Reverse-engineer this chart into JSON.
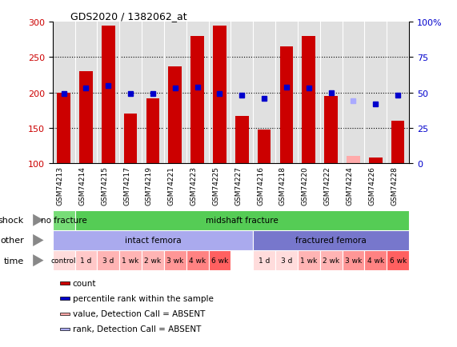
{
  "title": "GDS2020 / 1382062_at",
  "samples": [
    "GSM74213",
    "GSM74214",
    "GSM74215",
    "GSM74217",
    "GSM74219",
    "GSM74221",
    "GSM74223",
    "GSM74225",
    "GSM74227",
    "GSM74216",
    "GSM74218",
    "GSM74220",
    "GSM74222",
    "GSM74224",
    "GSM74226",
    "GSM74228"
  ],
  "counts": [
    200,
    230,
    295,
    170,
    192,
    237,
    280,
    295,
    167,
    147,
    265,
    280,
    195,
    110,
    108,
    160
  ],
  "count_absent": [
    false,
    false,
    false,
    false,
    false,
    false,
    false,
    false,
    false,
    false,
    false,
    false,
    false,
    true,
    false,
    false
  ],
  "percentile_ranks": [
    49,
    53,
    55,
    49,
    49,
    53,
    54,
    49,
    48,
    46,
    54,
    53,
    50,
    44,
    42,
    48
  ],
  "rank_absent": [
    false,
    false,
    false,
    false,
    false,
    false,
    false,
    false,
    false,
    false,
    false,
    false,
    false,
    true,
    false,
    false
  ],
  "ylim_left": [
    100,
    300
  ],
  "ylim_right": [
    0,
    100
  ],
  "yticks_left": [
    100,
    150,
    200,
    250,
    300
  ],
  "yticks_right": [
    0,
    25,
    50,
    75,
    100
  ],
  "bar_color": "#cc0000",
  "bar_absent_color": "#ffaaaa",
  "dot_color": "#0000cc",
  "dot_absent_color": "#aaaaff",
  "shock_labels": [
    {
      "text": "no fracture",
      "start": 0,
      "end": 1,
      "color": "#77dd77"
    },
    {
      "text": "midshaft fracture",
      "start": 1,
      "end": 16,
      "color": "#55cc55"
    }
  ],
  "other_labels": [
    {
      "text": "intact femora",
      "start": 0,
      "end": 9,
      "color": "#aaaaee"
    },
    {
      "text": "fractured femora",
      "start": 9,
      "end": 16,
      "color": "#7777cc"
    }
  ],
  "time_spans": [
    {
      "text": "control",
      "start": 0,
      "end": 1,
      "color": "#ffdcdc"
    },
    {
      "text": "1 d",
      "start": 1,
      "end": 2,
      "color": "#ffc8c8"
    },
    {
      "text": "3 d",
      "start": 2,
      "end": 3,
      "color": "#ffb4b4"
    },
    {
      "text": "1 wk",
      "start": 3,
      "end": 4,
      "color": "#ffb4b4"
    },
    {
      "text": "2 wk",
      "start": 4,
      "end": 5,
      "color": "#ffb4b4"
    },
    {
      "text": "3 wk",
      "start": 5,
      "end": 6,
      "color": "#ff9696"
    },
    {
      "text": "4 wk",
      "start": 6,
      "end": 7,
      "color": "#ff8282"
    },
    {
      "text": "6 wk",
      "start": 7,
      "end": 8,
      "color": "#ff6060"
    },
    {
      "text": "1 d",
      "start": 9,
      "end": 10,
      "color": "#ffdcdc"
    },
    {
      "text": "3 d",
      "start": 10,
      "end": 11,
      "color": "#ffdcdc"
    },
    {
      "text": "1 wk",
      "start": 11,
      "end": 12,
      "color": "#ffb4b4"
    },
    {
      "text": "2 wk",
      "start": 12,
      "end": 13,
      "color": "#ffb4b4"
    },
    {
      "text": "3 wk",
      "start": 13,
      "end": 14,
      "color": "#ff9696"
    },
    {
      "text": "4 wk",
      "start": 14,
      "end": 15,
      "color": "#ff8282"
    },
    {
      "text": "6 wk",
      "start": 15,
      "end": 16,
      "color": "#ff6060"
    }
  ],
  "row_labels": [
    "shock",
    "other",
    "time"
  ],
  "legend_items": [
    {
      "label": "count",
      "color": "#cc0000"
    },
    {
      "label": "percentile rank within the sample",
      "color": "#0000cc"
    },
    {
      "label": "value, Detection Call = ABSENT",
      "color": "#ffaaaa"
    },
    {
      "label": "rank, Detection Call = ABSENT",
      "color": "#aaaaff"
    }
  ],
  "bg_color": "#e0e0e0",
  "xticklabel_bg": "#c8c8c8"
}
